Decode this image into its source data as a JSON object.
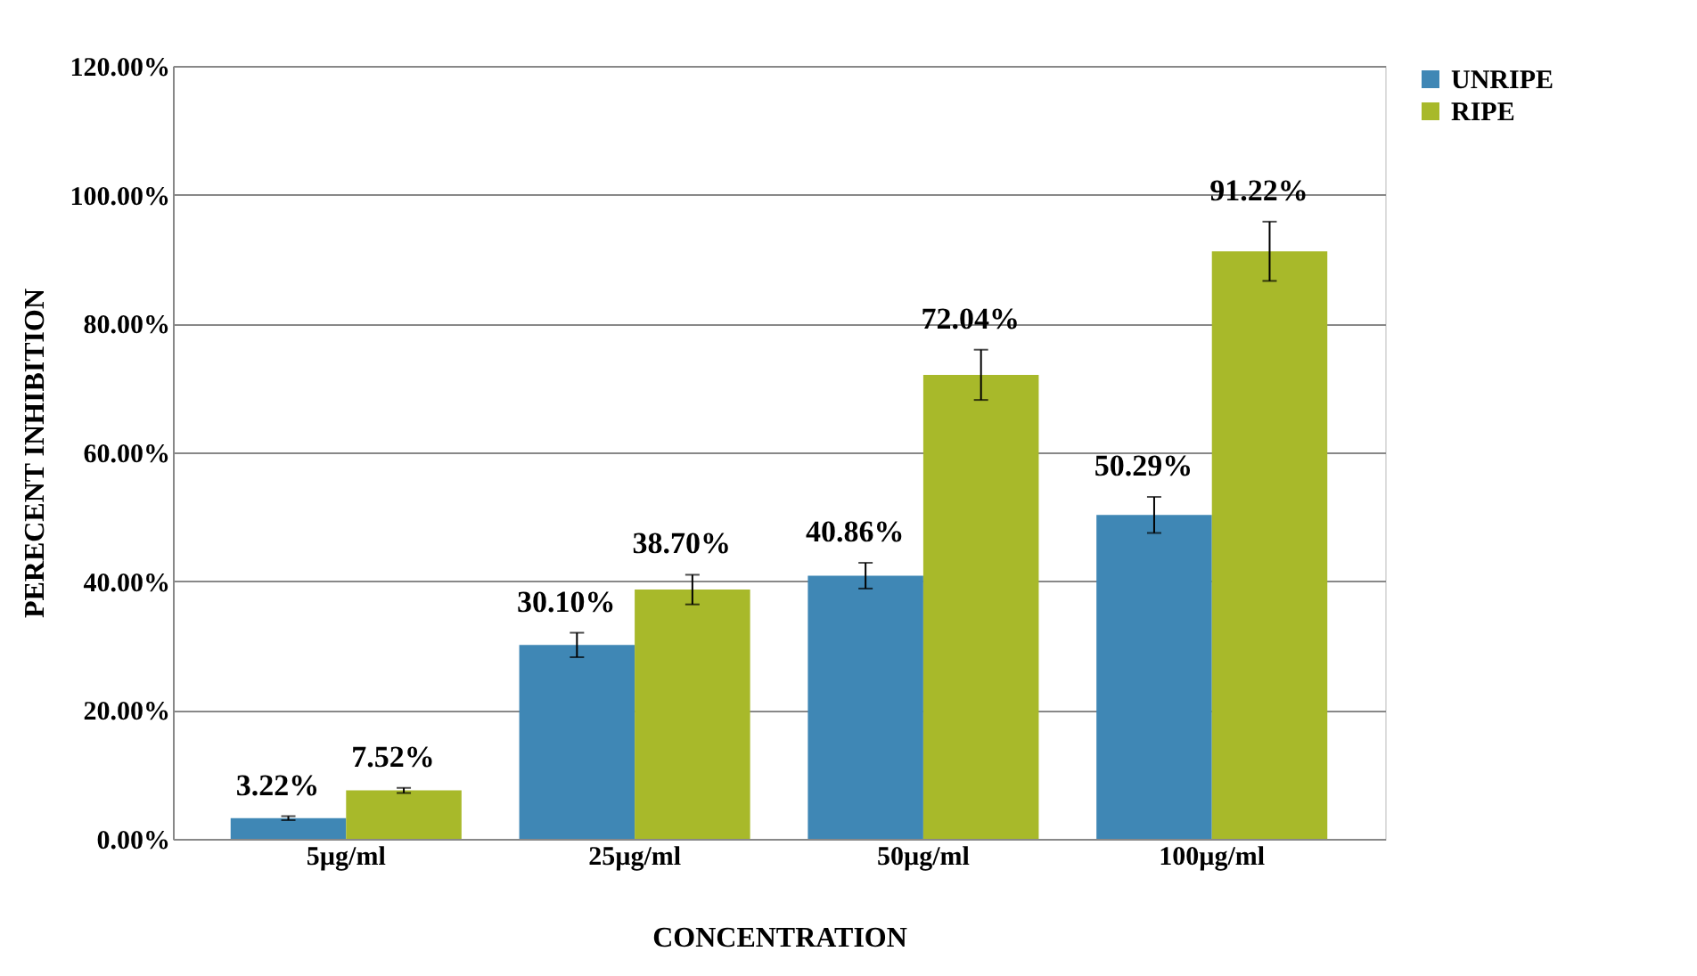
{
  "chart_data": {
    "type": "bar",
    "xlabel": "CONCENTRATION",
    "ylabel": "PERECENT INHIBITION",
    "categories": [
      "5µg/ml",
      "25µg/ml",
      "50µg/ml",
      "100µg/ml"
    ],
    "series": [
      {
        "name": "UNRIPE",
        "color": "#3f87b5",
        "values": [
          3.22,
          30.1,
          40.86,
          50.29
        ],
        "errors": [
          0.3,
          1.9,
          2.0,
          2.8
        ],
        "value_labels": [
          "3.22%",
          "30.10%",
          "40.86%",
          "50.29%"
        ]
      },
      {
        "name": "RIPE",
        "color": "#a8b92a",
        "values": [
          7.52,
          38.7,
          72.04,
          91.22
        ],
        "errors": [
          0.4,
          2.3,
          3.9,
          4.6
        ],
        "value_labels": [
          "7.52%",
          "38.70%",
          "72.04%",
          "91.22%"
        ]
      }
    ],
    "ylim": [
      0,
      120
    ],
    "yticks": [
      {
        "value": 0,
        "label": "0.00%"
      },
      {
        "value": 20,
        "label": "20.00%"
      },
      {
        "value": 40,
        "label": "40.00%"
      },
      {
        "value": 60,
        "label": "60.00%"
      },
      {
        "value": 80,
        "label": "80.00%"
      },
      {
        "value": 100,
        "label": "100.00%"
      },
      {
        "value": 120,
        "label": "120.00%"
      }
    ],
    "grid": "y",
    "legend": "right"
  }
}
